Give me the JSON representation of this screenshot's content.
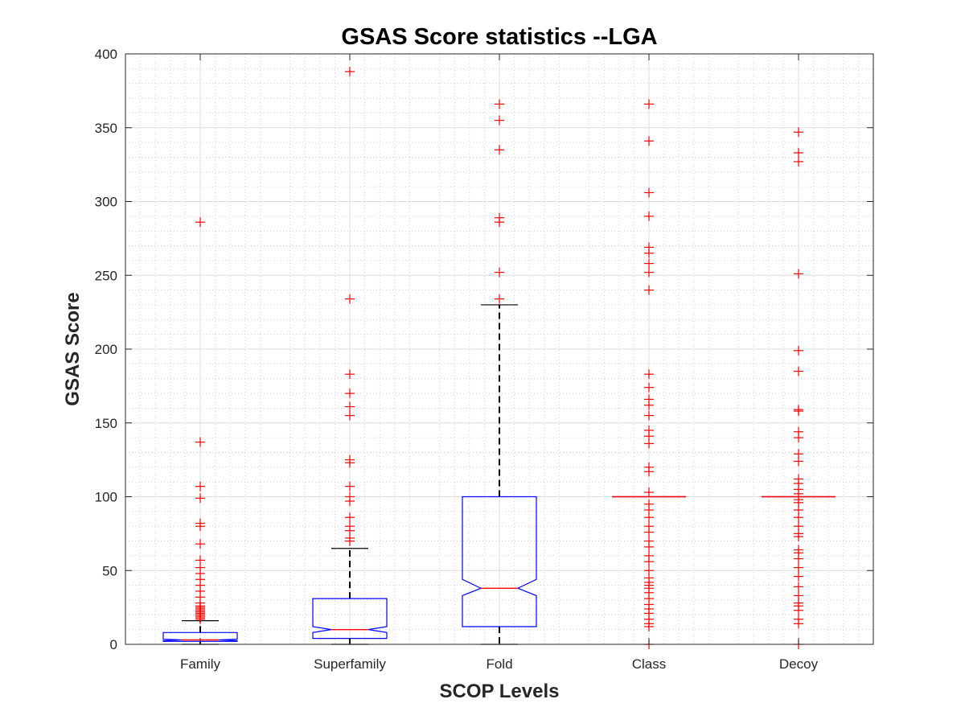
{
  "chart_data": {
    "type": "box",
    "title": "GSAS Score statistics --LGA",
    "xlabel": "SCOP Levels",
    "ylabel": "GSAS Score",
    "ylim": [
      0,
      400
    ],
    "yticks": [
      0,
      50,
      100,
      150,
      200,
      250,
      300,
      350,
      400
    ],
    "grid": true,
    "minor_grid": true,
    "notched": true,
    "colors": {
      "box": "#0000ff",
      "median": "#ff0000",
      "whisker": "#000000",
      "outlier": "#ff0000",
      "grid": "#c8c8c8"
    },
    "categories": [
      "Family",
      "Superfamily",
      "Fold",
      "Class",
      "Decoy"
    ],
    "boxes": [
      {
        "category": "Family",
        "q1": 2,
        "median": 3,
        "q3": 8,
        "whisker_low": 0,
        "whisker_high": 16,
        "notch_low": 2.5,
        "notch_high": 3.5,
        "outliers": [
          286,
          137,
          107,
          99,
          82,
          80,
          68,
          57,
          52,
          48,
          44,
          40,
          36,
          32,
          28,
          26,
          25,
          24,
          23,
          22,
          21,
          20,
          19,
          18,
          17
        ]
      },
      {
        "category": "Superfamily",
        "q1": 4,
        "median": 10,
        "q3": 31,
        "whisker_low": 0,
        "whisker_high": 65,
        "notch_low": 8,
        "notch_high": 12,
        "outliers": [
          388,
          234,
          183,
          170,
          161,
          155,
          125,
          123,
          107,
          100,
          97,
          86,
          80,
          77,
          72,
          70
        ]
      },
      {
        "category": "Fold",
        "q1": 12,
        "median": 38,
        "q3": 100,
        "whisker_low": 0,
        "whisker_high": 230,
        "notch_low": 33,
        "notch_high": 44,
        "outliers": [
          366,
          355,
          335,
          289,
          286,
          252,
          234
        ]
      },
      {
        "category": "Class",
        "q1": 100,
        "median": 100,
        "q3": 100,
        "whisker_low": 100,
        "whisker_high": 100,
        "notch_low": 100,
        "notch_high": 100,
        "outliers": [
          366,
          341,
          306,
          290,
          269,
          265,
          258,
          252,
          240,
          183,
          174,
          166,
          162,
          155,
          145,
          141,
          136,
          120,
          117,
          103,
          95,
          91,
          86,
          80,
          76,
          70,
          66,
          60,
          56,
          50,
          45,
          42,
          40,
          38,
          35,
          31,
          27,
          24,
          21,
          17,
          14,
          12,
          0
        ]
      },
      {
        "category": "Decoy",
        "q1": 100,
        "median": 100,
        "q3": 100,
        "whisker_low": 100,
        "whisker_high": 100,
        "notch_low": 100,
        "notch_high": 100,
        "outliers": [
          347,
          333,
          327,
          251,
          199,
          185,
          159,
          158,
          144,
          140,
          129,
          124,
          112,
          109,
          105,
          102,
          98,
          96,
          91,
          86,
          80,
          75,
          73,
          64,
          62,
          58,
          52,
          46,
          39,
          33,
          28,
          26,
          23,
          17,
          14,
          0
        ]
      }
    ]
  }
}
